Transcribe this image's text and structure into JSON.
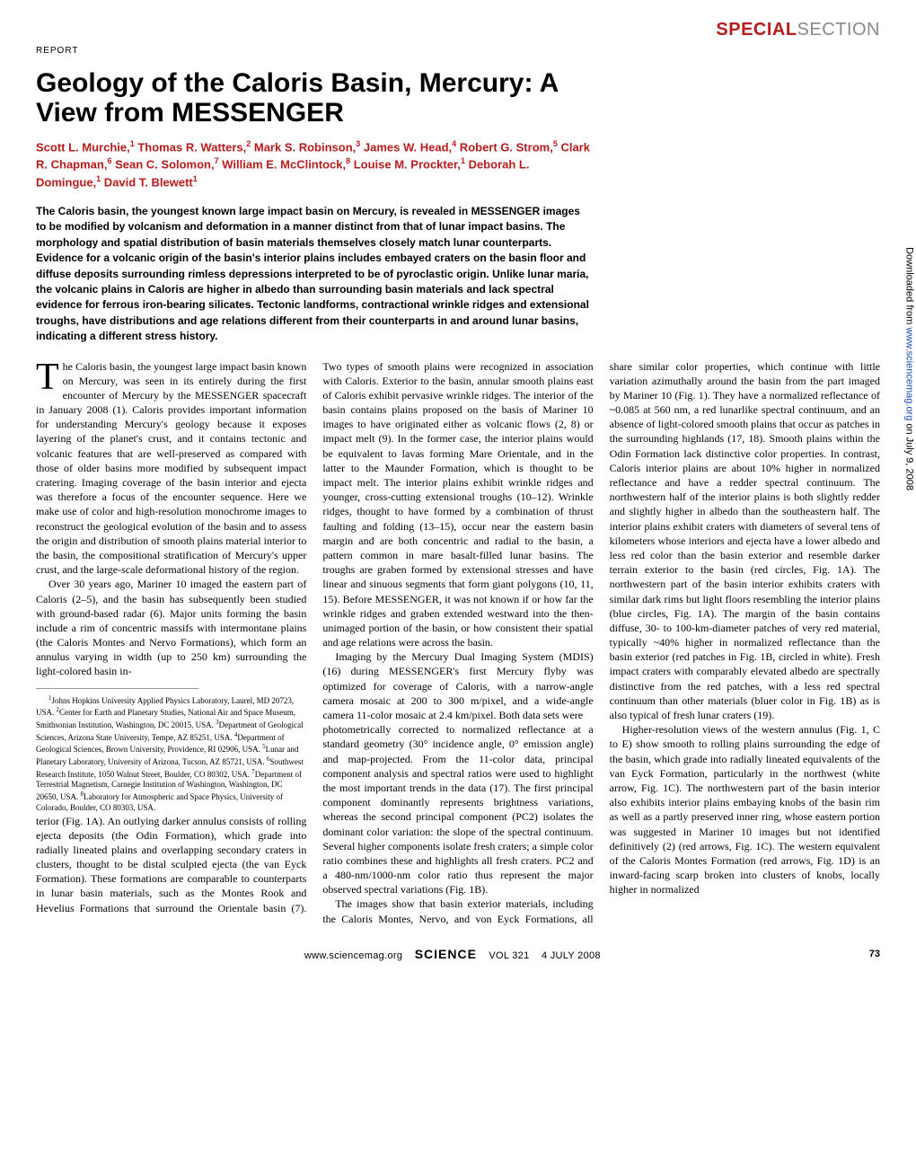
{
  "header": {
    "special_bold": "SPECIAL",
    "special_light": "SECTION",
    "report_label": "REPORT"
  },
  "article": {
    "title": "Geology of the Caloris Basin, Mercury: A View from MESSENGER",
    "authors_html": "Scott L. Murchie,<sup>1</sup> Thomas R. Watters,<sup>2</sup> Mark S. Robinson,<sup>3</sup> James W. Head,<sup>4</sup> Robert G. Strom,<sup>5</sup> Clark R. Chapman,<sup>6</sup> Sean C. Solomon,<sup>7</sup> William E. McClintock,<sup>8</sup> Louise M. Prockter,<sup>1</sup> Deborah L. Domingue,<sup>1</sup> David T. Blewett<sup>1</sup>",
    "abstract": "The Caloris basin, the youngest known large impact basin on Mercury, is revealed in MESSENGER images to be modified by volcanism and deformation in a manner distinct from that of lunar impact basins. The morphology and spatial distribution of basin materials themselves closely match lunar counterparts. Evidence for a volcanic origin of the basin's interior plains includes embayed craters on the basin floor and diffuse deposits surrounding rimless depressions interpreted to be of pyroclastic origin. Unlike lunar maria, the volcanic plains in Caloris are higher in albedo than surrounding basin materials and lack spectral evidence for ferrous iron-bearing silicates. Tectonic landforms, contractional wrinkle ridges and extensional troughs, have distributions and age relations different from their counterparts in and around lunar basins, indicating a different stress history."
  },
  "body": {
    "p1": "The Caloris basin, the youngest large impact basin known on Mercury, was seen in its entirely during the first encounter of Mercury by the MESSENGER spacecraft in January 2008 (1). Caloris provides important information for understanding Mercury's geology because it exposes layering of the planet's crust, and it contains tectonic and volcanic features that are well-preserved as compared with those of older basins more modified by subsequent impact cratering. Imaging coverage of the basin interior and ejecta was therefore a focus of the encounter sequence. Here we make use of color and high-resolution monochrome images to reconstruct the geological evolution of the basin and to assess the origin and distribution of smooth plains material interior to the basin, the compositional stratification of Mercury's upper crust, and the large-scale deformational history of the region.",
    "p2": "Over 30 years ago, Mariner 10 imaged the eastern part of Caloris (2–5), and the basin has subsequently been studied with ground-based radar (6). Major units forming the basin include a rim of concentric massifs with intermontane plains (the Caloris Montes and Nervo Formations), which form an annulus varying in width (up to 250 km) surrounding the light-colored basin in-",
    "p3": "terior (Fig. 1A). An outlying darker annulus consists of rolling ejecta deposits (the Odin Formation), which grade into radially lineated plains and overlapping secondary craters in clusters, thought to be distal sculpted ejecta (the van Eyck Formation). These formations are comparable to counterparts in lunar basin materials, such as the Montes Rook and Hevelius Formations that surround the Orientale basin (7). Two types of smooth plains were recognized in association with Caloris. Exterior to the basin, annular smooth plains east of Caloris exhibit pervasive wrinkle ridges. The interior of the basin contains plains proposed on the basis of Mariner 10 images to have originated either as volcanic flows (2, 8) or impact melt (9). In the former case, the interior plains would be equivalent to lavas forming Mare Orientale, and in the latter to the Maunder Formation, which is thought to be impact melt. The interior plains exhibit wrinkle ridges and younger, cross-cutting extensional troughs (10–12). Wrinkle ridges, thought to have formed by a combination of thrust faulting and folding (13–15), occur near the eastern basin margin and are both concentric and radial to the basin, a pattern common in mare basalt-filled lunar basins. The troughs are graben formed by extensional stresses and have linear and sinuous segments that form giant polygons (10, 11, 15). Before MESSENGER, it was not known if or how far the wrinkle ridges and graben extended westward into the then-unimaged portion of the basin, or how consistent their spatial and age relations were across the basin.",
    "p4": "Imaging by the Mercury Dual Imaging System (MDIS) (16) during MESSENGER's first Mercury flyby was optimized for coverage of Caloris, with a narrow-angle camera mosaic at 200 to 300 m/pixel, and a wide-angle camera 11-color mosaic at 2.4 km/pixel. Both data sets were",
    "p5": "photometrically corrected to normalized reflectance at a standard geometry (30° incidence angle, 0° emission angle) and map-projected. From the 11-color data, principal component analysis and spectral ratios were used to highlight the most important trends in the data (17). The first principal component dominantly represents brightness variations, whereas the second principal component (PC2) isolates the dominant color variation: the slope of the spectral continuum. Several higher components isolate fresh craters; a simple color ratio combines these and highlights all fresh craters. PC2 and a 480-nm/1000-nm color ratio thus represent the major observed spectral variations (Fig. 1B).",
    "p6": "The images show that basin exterior materials, including the Caloris Montes, Nervo, and von Eyck Formations, all share similar color properties, which continue with little variation azimuthally around the basin from the part imaged by Mariner 10 (Fig. 1). They have a normalized reflectance of ~0.085 at 560 nm, a red lunarlike spectral continuum, and an absence of light-colored smooth plains that occur as patches in the surrounding highlands (17, 18). Smooth plains within the Odin Formation lack distinctive color properties. In contrast, Caloris interior plains are about 10% higher in normalized reflectance and have a redder spectral continuum. The northwestern half of the interior plains is both slightly redder and slightly higher in albedo than the southeastern half. The interior plains exhibit craters with diameters of several tens of kilometers whose interiors and ejecta have a lower albedo and less red color than the basin exterior and resemble darker terrain exterior to the basin (red circles, Fig. 1A). The northwestern part of the basin interior exhibits craters with similar dark rims but light floors resembling the interior plains (blue circles, Fig. 1A). The margin of the basin contains diffuse, 30- to 100-km-diameter patches of very red material, typically ~40% higher in normalized reflectance than the basin exterior (red patches in Fig. 1B, circled in white). Fresh impact craters with comparably elevated albedo are spectrally distinctive from the red patches, with a less red spectral continuum than other materials (bluer color in Fig. 1B) as is also typical of fresh lunar craters (19).",
    "p7": "Higher-resolution views of the western annulus (Fig. 1, C to E) show smooth to rolling plains surrounding the edge of the basin, which grade into radially lineated equivalents of the van Eyck Formation, particularly in the northwest (white arrow, Fig. 1C). The northwestern part of the basin interior also exhibits interior plains embaying knobs of the basin rim as well as a partly preserved inner ring, whose eastern portion was suggested in Mariner 10 images but not identified definitively (2) (red arrows, Fig. 1C). The western equivalent of the Caloris Montes Formation (red arrows, Fig. 1D) is an inward-facing scarp broken into clusters of knobs, locally higher in normalized"
  },
  "affiliations_html": "<sup>1</sup>Johns Hopkins University Applied Physics Laboratory, Laurel, MD 20723, USA. <sup>2</sup>Center for Earth and Planetary Studies, National Air and Space Museum, Smithsonian Institution, Washington, DC 20015, USA. <sup>3</sup>Department of Geological Sciences, Arizona State University, Tempe, AZ 85251, USA. <sup>4</sup>Department of Geological Sciences, Brown University, Providence, RI 02906, USA. <sup>5</sup>Lunar and Planetary Laboratory, University of Arizona, Tucson, AZ 85721, USA. <sup>6</sup>Southwest Research Institute, 1050 Walnut Street, Boulder, CO 80302, USA. <sup>7</sup>Department of Terrestrial Magnetism, Carnegie Institution of Washington, Washington, DC 20650, USA. <sup>8</sup>Laboratory for Atmospheric and Space Physics, University of Colorado, Boulder, CO 80303, USA.",
  "footer": {
    "left": "",
    "url": "www.sciencemag.org",
    "brand": "SCIENCE",
    "vol": "VOL 321",
    "date": "4 JULY 2008",
    "page": "73"
  },
  "side": {
    "prefix": "Downloaded from ",
    "link": "www.sciencemag.org",
    "suffix": " on July 9, 2008"
  }
}
